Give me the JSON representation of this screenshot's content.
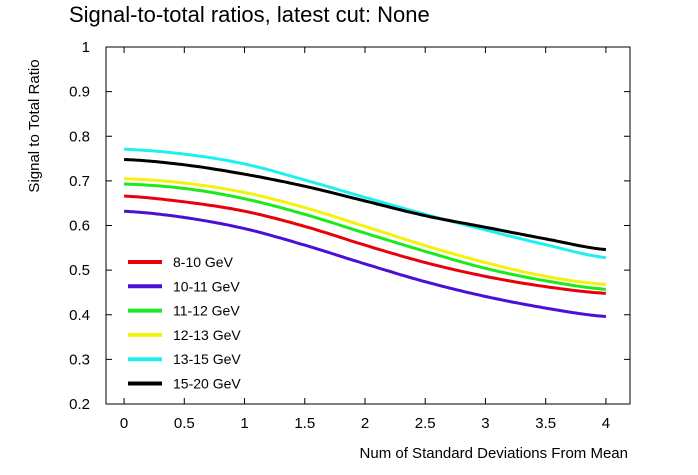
{
  "chart_data": {
    "type": "line",
    "title": "Signal-to-total ratios, latest cut: None",
    "xlabel": "Num of Standard Deviations From Mean",
    "ylabel": "Signal to Total Ratio",
    "xlim": [
      -0.15,
      4.2
    ],
    "ylim": [
      0.2,
      1.0
    ],
    "xticks": [
      0,
      0.5,
      1,
      1.5,
      2,
      2.5,
      3,
      3.5,
      4
    ],
    "xtick_labels": [
      "0",
      "0.5",
      "1",
      "1.5",
      "2",
      "2.5",
      "3",
      "3.5",
      "4"
    ],
    "yticks": [
      0.2,
      0.3,
      0.4,
      0.5,
      0.6,
      0.7,
      0.8,
      0.9,
      1.0
    ],
    "ytick_labels": [
      "0.2",
      "0.3",
      "0.4",
      "0.5",
      "0.6",
      "0.7",
      "0.8",
      "0.9",
      "1"
    ],
    "grid": false,
    "legend_position": "bottom-left",
    "x": [
      0,
      0.5,
      1,
      1.5,
      2,
      2.5,
      3,
      3.5,
      4
    ],
    "series": [
      {
        "name": "8-10 GeV",
        "color": "#e8000b",
        "values": [
          0.666,
          0.653,
          0.632,
          0.598,
          0.556,
          0.517,
          0.486,
          0.463,
          0.448
        ]
      },
      {
        "name": "10-11 GeV",
        "color": "#4b0fd6",
        "values": [
          0.632,
          0.618,
          0.593,
          0.556,
          0.514,
          0.474,
          0.441,
          0.415,
          0.396
        ]
      },
      {
        "name": "11-12 GeV",
        "color": "#1ee81e",
        "values": [
          0.693,
          0.683,
          0.66,
          0.625,
          0.583,
          0.542,
          0.504,
          0.476,
          0.457
        ]
      },
      {
        "name": "12-13 GeV",
        "color": "#f2f20a",
        "values": [
          0.705,
          0.695,
          0.674,
          0.64,
          0.598,
          0.555,
          0.517,
          0.486,
          0.468
        ]
      },
      {
        "name": "13-15 GeV",
        "color": "#1ef0f0",
        "values": [
          0.771,
          0.76,
          0.738,
          0.702,
          0.663,
          0.625,
          0.59,
          0.557,
          0.528
        ]
      },
      {
        "name": "15-20 GeV",
        "color": "#000000",
        "values": [
          0.748,
          0.736,
          0.715,
          0.688,
          0.655,
          0.622,
          0.596,
          0.57,
          0.546
        ]
      }
    ]
  }
}
